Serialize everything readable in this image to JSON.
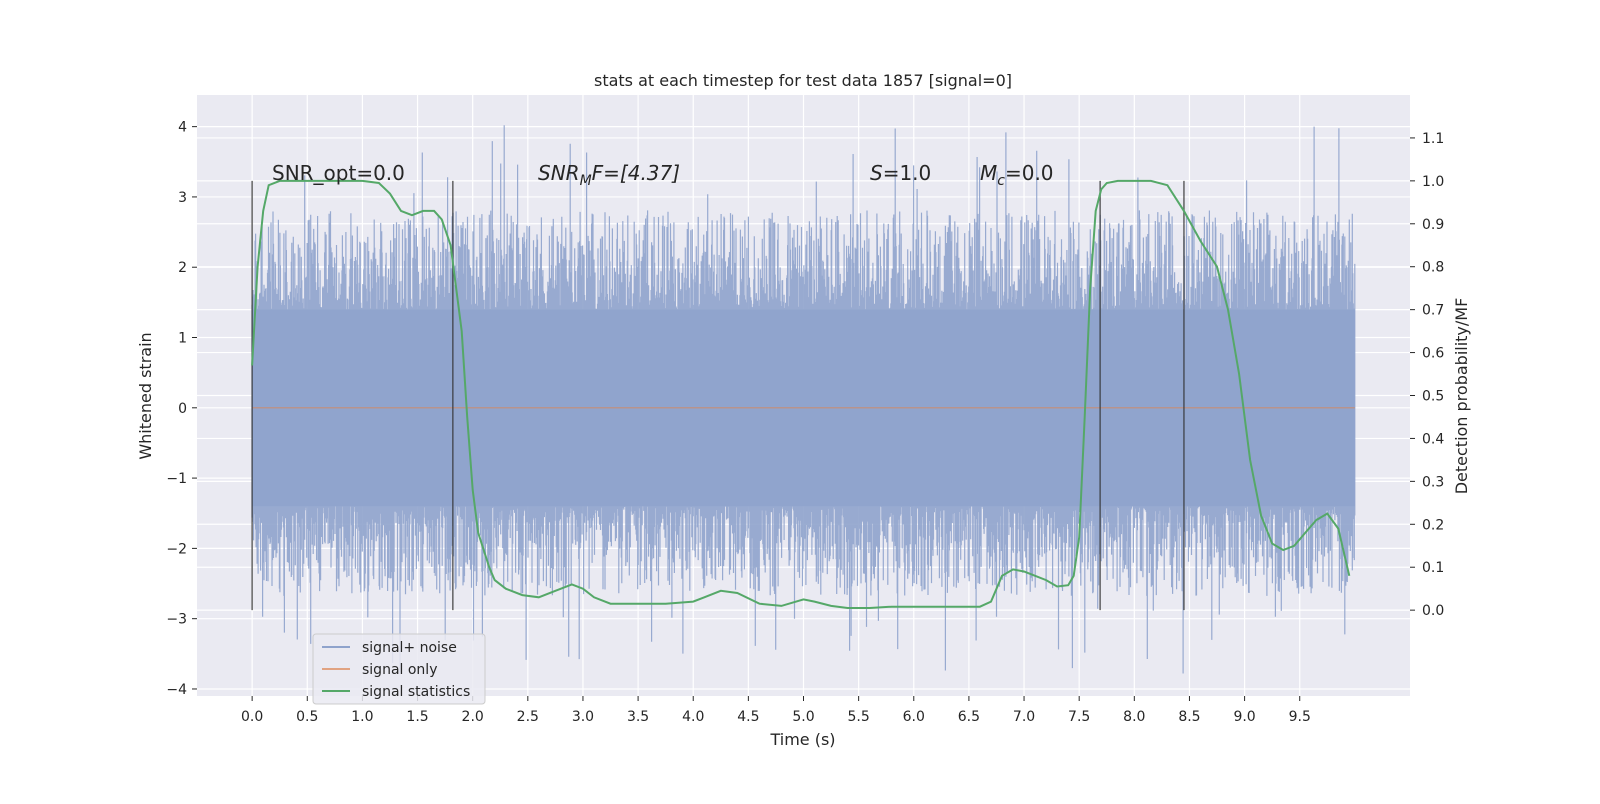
{
  "chart_data": {
    "type": "line",
    "title": "stats at each timestep for test data 1857 [signal=0]",
    "xlabel": "Time (s)",
    "ylabel_left": "Whitened strain",
    "ylabel_right": "Detection probability/MF",
    "xlim": [
      -0.5,
      10.5
    ],
    "ylim_left": [
      -4.1,
      4.45
    ],
    "ylim_right": [
      -0.2,
      1.2
    ],
    "x_ticks": [
      "0.0",
      "0.5",
      "1.0",
      "1.5",
      "2.0",
      "2.5",
      "3.0",
      "3.5",
      "4.0",
      "4.5",
      "5.0",
      "5.5",
      "6.0",
      "6.5",
      "7.0",
      "7.5",
      "8.0",
      "8.5",
      "9.0",
      "9.5"
    ],
    "y_ticks_left": [
      "4",
      "3",
      "2",
      "1",
      "0",
      "−1",
      "−2",
      "−3",
      "−4"
    ],
    "y_ticks_right": [
      "1.1",
      "1.0",
      "0.9",
      "0.8",
      "0.7",
      "0.6",
      "0.5",
      "0.4",
      "0.3",
      "0.2",
      "0.1",
      "0.0"
    ],
    "grid": true,
    "legend_position": "lower-left",
    "annotations": {
      "snr_opt": "SNR_opt=0.0",
      "snr_mf_main": "SNR",
      "snr_mf_sub": "M",
      "snr_mf_tail": "F=[4.37]",
      "s_main": "S",
      "s_tail": "=1.0",
      "mc_main": "M",
      "mc_sub": "c",
      "mc_tail": "=0.0"
    },
    "vertical_markers_x": [
      0.0,
      1.82,
      7.69,
      8.45
    ],
    "series": [
      {
        "name": "signal+ noise",
        "color": "#8fa3cc",
        "axis": "left",
        "description": "noise band",
        "core_band": [
          -1.4,
          1.4
        ],
        "spike_range": [
          -3.8,
          4.05
        ],
        "x_range": [
          0.0,
          10.0
        ]
      },
      {
        "name": "signal only",
        "color": "#dd8452",
        "axis": "left",
        "x": [
          0.0,
          10.0
        ],
        "y": [
          0.0,
          0.0
        ]
      },
      {
        "name": "signal statistics",
        "color": "#55a868",
        "axis": "right",
        "x": [
          0.0,
          0.05,
          0.1,
          0.15,
          0.25,
          0.5,
          0.75,
          1.0,
          1.15,
          1.25,
          1.35,
          1.45,
          1.55,
          1.65,
          1.72,
          1.8,
          1.9,
          1.95,
          2.0,
          2.05,
          2.1,
          2.15,
          2.2,
          2.3,
          2.45,
          2.6,
          2.75,
          2.9,
          3.0,
          3.1,
          3.25,
          3.5,
          3.75,
          4.0,
          4.1,
          4.25,
          4.4,
          4.6,
          4.8,
          5.0,
          5.1,
          5.25,
          5.4,
          5.6,
          5.8,
          6.0,
          6.3,
          6.6,
          6.7,
          6.8,
          6.9,
          7.0,
          7.1,
          7.2,
          7.3,
          7.4,
          7.45,
          7.5,
          7.55,
          7.6,
          7.65,
          7.7,
          7.75,
          7.85,
          8.0,
          8.15,
          8.3,
          8.45,
          8.6,
          8.75,
          8.85,
          8.95,
          9.05,
          9.15,
          9.25,
          9.35,
          9.45,
          9.55,
          9.65,
          9.75,
          9.85,
          9.95
        ],
        "y": [
          0.57,
          0.8,
          0.93,
          0.99,
          1.0,
          1.0,
          1.0,
          1.0,
          0.995,
          0.97,
          0.93,
          0.92,
          0.93,
          0.93,
          0.91,
          0.85,
          0.65,
          0.45,
          0.28,
          0.18,
          0.14,
          0.1,
          0.07,
          0.05,
          0.035,
          0.03,
          0.045,
          0.06,
          0.05,
          0.03,
          0.015,
          0.015,
          0.015,
          0.02,
          0.03,
          0.045,
          0.04,
          0.015,
          0.01,
          0.025,
          0.02,
          0.01,
          0.005,
          0.005,
          0.008,
          0.008,
          0.008,
          0.008,
          0.02,
          0.08,
          0.095,
          0.09,
          0.08,
          0.07,
          0.055,
          0.058,
          0.08,
          0.17,
          0.45,
          0.75,
          0.93,
          0.98,
          0.995,
          1.0,
          1.0,
          1.0,
          0.99,
          0.93,
          0.86,
          0.8,
          0.7,
          0.55,
          0.35,
          0.22,
          0.155,
          0.14,
          0.15,
          0.18,
          0.21,
          0.225,
          0.19,
          0.08
        ]
      }
    ],
    "legend": [
      "signal+ noise",
      "signal only",
      "signal statistics"
    ]
  }
}
